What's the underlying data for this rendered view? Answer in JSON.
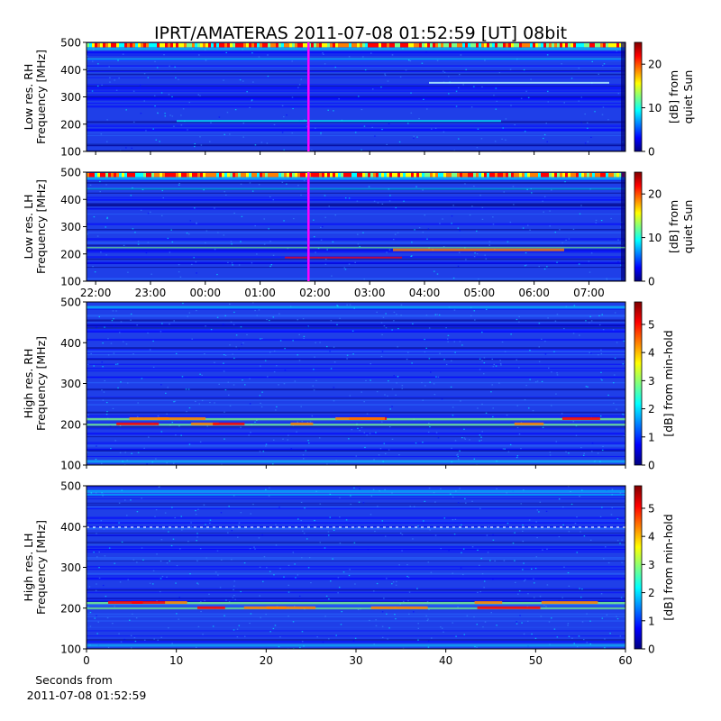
{
  "title": "IPRT/AMATERAS 2011-07-08 01:52:59 [UT]   08bit",
  "colors": {
    "cursor": "#ff00ff",
    "colormap": [
      "#00007f",
      "#0000ff",
      "#007fff",
      "#00ffff",
      "#7fff7f",
      "#ffff00",
      "#ff7f00",
      "#ff0000",
      "#7f0000"
    ]
  },
  "chart_data": [
    {
      "type": "heatmap",
      "ylabel": [
        "Low res. RH",
        "Frequency [MHz]"
      ],
      "ylim": [
        100,
        500
      ],
      "yticks": [
        100,
        200,
        300,
        400,
        500
      ],
      "colorbar": {
        "label": [
          "[dB] from",
          "quiet Sun"
        ],
        "range": [
          0,
          25
        ],
        "ticks": [
          0,
          10,
          20
        ]
      },
      "xlim": [
        "21:50",
        "07:40"
      ],
      "xticks_shared": true,
      "cursor_time": "01:52:59"
    },
    {
      "type": "heatmap",
      "ylabel": [
        "Low res. LH",
        "Frequency [MHz]"
      ],
      "ylim": [
        100,
        500
      ],
      "yticks": [
        100,
        200,
        300,
        400,
        500
      ],
      "colorbar": {
        "label": [
          "[dB] from",
          "quiet Sun"
        ],
        "range": [
          0,
          25
        ],
        "ticks": [
          0,
          10,
          20
        ]
      },
      "xlim": [
        "21:50",
        "07:40"
      ],
      "xtick_labels": [
        "22:00",
        "23:00",
        "00:00",
        "01:00",
        "02:00",
        "03:00",
        "04:00",
        "05:00",
        "06:00",
        "07:00"
      ],
      "cursor_time": "01:52:59"
    },
    {
      "type": "heatmap",
      "ylabel": [
        "High res. RH",
        "Frequency [MHz]"
      ],
      "ylim": [
        100,
        500
      ],
      "yticks": [
        100,
        200,
        300,
        400,
        500
      ],
      "colorbar": {
        "label": [
          "[dB] from min-hold"
        ],
        "range": [
          0,
          5.8
        ],
        "ticks": [
          0,
          1,
          2,
          3,
          4,
          5
        ]
      },
      "xlim": [
        0,
        60
      ],
      "xticks_shared": true
    },
    {
      "type": "heatmap",
      "ylabel": [
        "High res. LH",
        "Frequency [MHz]"
      ],
      "ylim": [
        100,
        500
      ],
      "yticks": [
        100,
        200,
        300,
        400,
        500
      ],
      "colorbar": {
        "label": [
          "[dB] from min-hold"
        ],
        "range": [
          0,
          5.8
        ],
        "ticks": [
          0,
          1,
          2,
          3,
          4,
          5
        ]
      },
      "xlim": [
        0,
        60
      ],
      "xtick_labels": [
        0,
        10,
        20,
        30,
        40,
        50,
        60
      ],
      "xlabel": [
        "Seconds from",
        "2011-07-08 01:52:59"
      ]
    }
  ]
}
